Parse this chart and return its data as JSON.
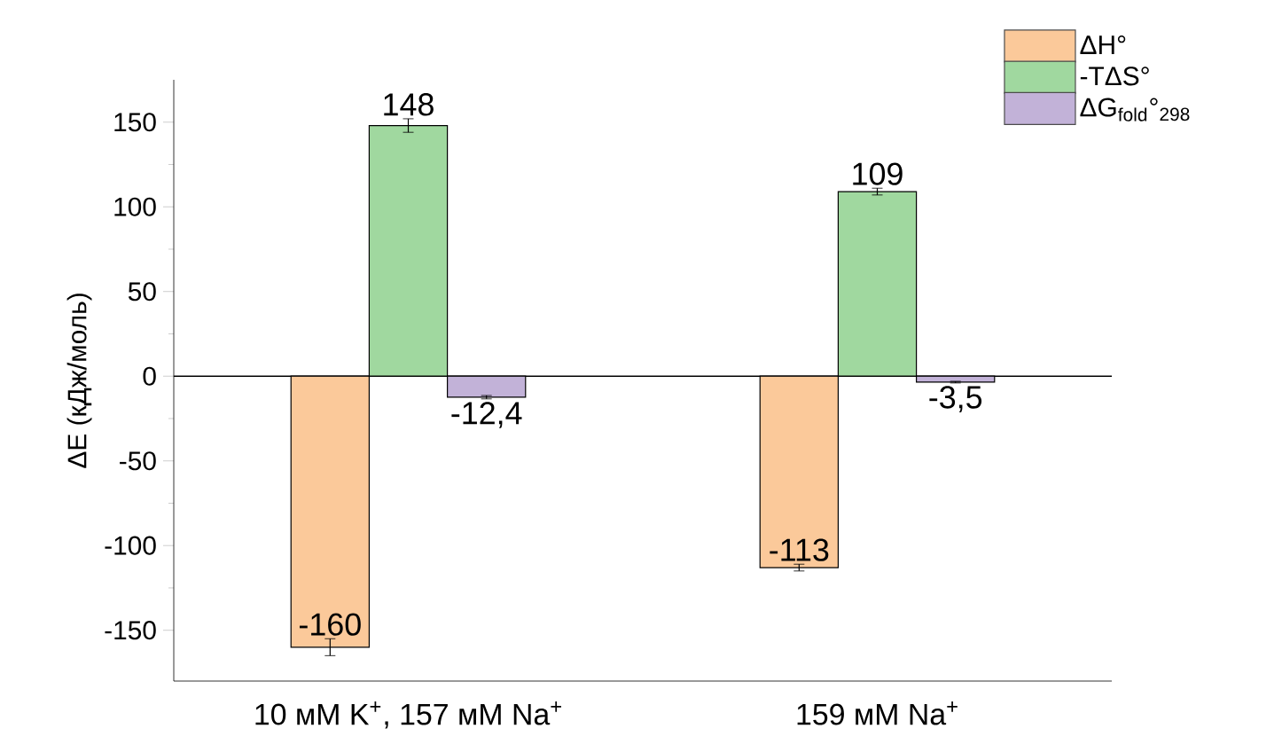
{
  "chart_data": {
    "type": "bar",
    "ylabel": "ΔE (кДж/моль)",
    "categories": [
      "10 мМ K$^{+}$, 157 мМ Na$^{+}$",
      "159 мМ Na$^{+}$"
    ],
    "series": [
      {
        "name": "ΔH°",
        "color": "#fbc99a",
        "values": [
          -160,
          -113
        ],
        "errors": [
          5,
          2
        ],
        "value_labels": [
          "-160",
          "-113"
        ]
      },
      {
        "name": "-TΔS°",
        "color": "#a0d89f",
        "values": [
          148,
          109
        ],
        "errors": [
          4,
          2
        ],
        "value_labels": [
          "148",
          "109"
        ]
      },
      {
        "name": "ΔG$_{fold}$°$_{298}$",
        "color": "#c2b2d8",
        "values": [
          -12.4,
          -3.5
        ],
        "errors": [
          1,
          0.5
        ],
        "value_labels": [
          "-12,4",
          "-3,5"
        ]
      }
    ],
    "ylim": [
      -180,
      175
    ],
    "yticks": [
      -150,
      -100,
      -50,
      0,
      50,
      100,
      150
    ],
    "ref_lines": [
      {
        "axis": "y",
        "value": 0
      }
    ],
    "legend": "top right"
  }
}
